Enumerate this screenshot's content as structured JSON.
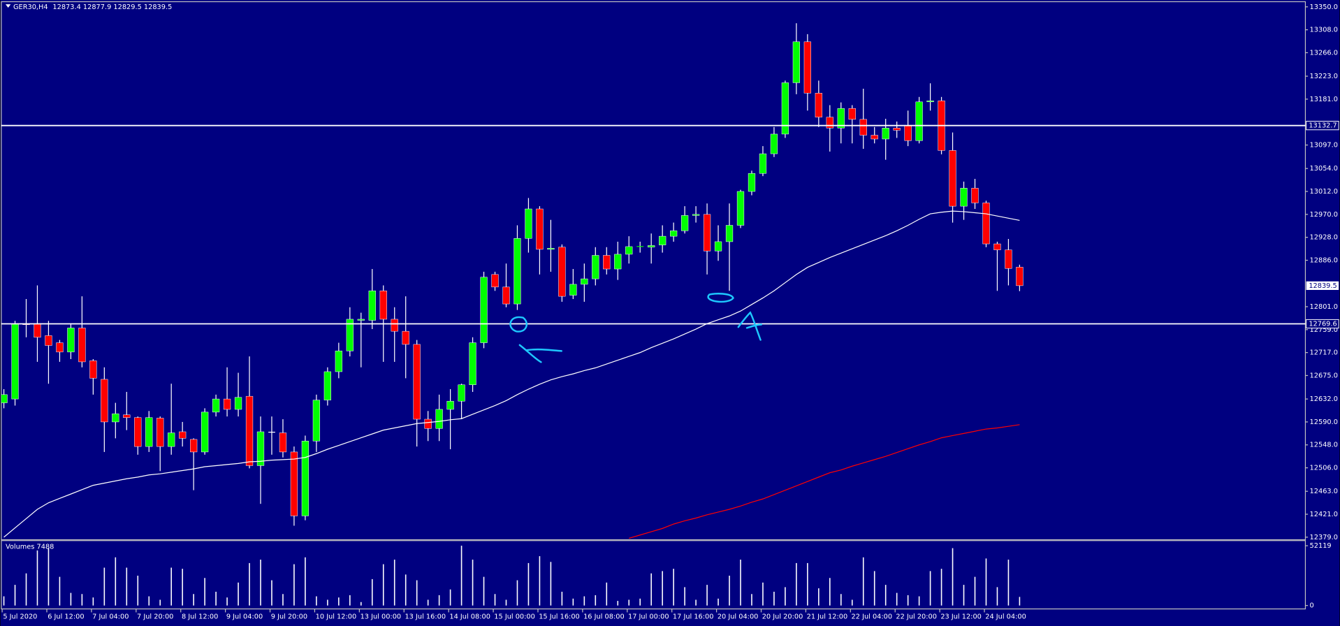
{
  "chart_data": {
    "type": "candlestick",
    "symbol": "GER30,H4",
    "categories": [
      "5 Jul 2020",
      null,
      null,
      null,
      "6 Jul 12:00",
      null,
      null,
      null,
      "7 Jul 04:00",
      null,
      null,
      null,
      "7 Jul 20:00",
      null,
      null,
      null,
      "8 Jul 12:00",
      null,
      null,
      null,
      "9 Jul 04:00",
      null,
      null,
      null,
      "9 Jul 20:00",
      null,
      null,
      null,
      "10 Jul 12:00",
      null,
      null,
      null,
      "13 Jul 00:00",
      null,
      null,
      null,
      "13 Jul 16:00",
      null,
      null,
      null,
      "14 Jul 08:00",
      null,
      null,
      null,
      "15 Jul 00:00",
      null,
      null,
      null,
      "15 Jul 16:00",
      null,
      null,
      null,
      "16 Jul 08:00",
      null,
      null,
      null,
      "17 Jul 00:00",
      null,
      null,
      null,
      "17 Jul 16:00",
      null,
      null,
      null,
      "20 Jul 04:00",
      null,
      null,
      null,
      "20 Jul 20:00",
      null,
      null,
      null,
      "21 Jul 12:00",
      null,
      null,
      null,
      "22 Jul 04:00",
      null,
      null,
      null,
      "22 Jul 20:00",
      null,
      null,
      null,
      "23 Jul 12:00",
      null,
      null,
      null,
      "24 Jul 04:00",
      null,
      null,
      null
    ],
    "open": [
      12625,
      12632,
      12770,
      12770,
      12748,
      12735,
      12718,
      12762,
      12702,
      12668,
      12590,
      12603,
      12598,
      12545,
      12597,
      12545,
      12572,
      12558,
      12535,
      12608,
      12632,
      12613,
      12637,
      12510,
      12572,
      12570,
      12535,
      12418,
      12555,
      12630,
      12682,
      12720,
      12776,
      12776,
      12830,
      12778,
      12756,
      12732,
      12595,
      12578,
      12613,
      12628,
      12658,
      12735,
      12860,
      12837,
      12806,
      12926,
      12980,
      12906,
      12910,
      12822,
      12842,
      12852,
      12895,
      12870,
      12897,
      12911,
      12910,
      12914,
      12930,
      12940,
      12968,
      12970,
      12903,
      12920,
      12950,
      13012,
      13045,
      13081,
      13117,
      13211,
      13286,
      13192,
      13148,
      13128,
      13164,
      13144,
      13115,
      13108,
      13128,
      13133,
      13105,
      13176,
      13178,
      13087,
      12985,
      13018,
      12991,
      12916,
      12905,
      12873.4
    ],
    "high": [
      12650,
      12775,
      12815,
      12840,
      12775,
      12740,
      12770,
      12820,
      12705,
      12690,
      12625,
      12645,
      12600,
      12610,
      12600,
      12660,
      12590,
      12560,
      12615,
      12640,
      12690,
      12680,
      12710,
      12600,
      12600,
      12595,
      12545,
      12565,
      12640,
      12690,
      12735,
      12800,
      12790,
      12870,
      12840,
      12800,
      12820,
      12740,
      12610,
      12640,
      12650,
      12660,
      12745,
      12865,
      12865,
      12880,
      12950,
      13000,
      12985,
      12960,
      12915,
      12870,
      12880,
      12910,
      12910,
      12920,
      12930,
      12920,
      12935,
      12950,
      12955,
      12985,
      12985,
      12990,
      12950,
      12990,
      13015,
      13050,
      13095,
      13130,
      13215,
      13320,
      13300,
      13215,
      13170,
      13175,
      13170,
      13200,
      13130,
      13145,
      13140,
      13160,
      13185,
      13210,
      13185,
      13120,
      13030,
      13035,
      12995,
      12920,
      12925,
      12877.9
    ],
    "low": [
      12615,
      12620,
      12745,
      12700,
      12660,
      12700,
      12705,
      12690,
      12640,
      12535,
      12560,
      12575,
      12530,
      12535,
      12500,
      12530,
      12545,
      12465,
      12530,
      12600,
      12600,
      12600,
      12505,
      12440,
      12530,
      12525,
      12400,
      12410,
      12535,
      12620,
      12670,
      12710,
      12690,
      12760,
      12700,
      12700,
      12670,
      12545,
      12555,
      12555,
      12540,
      12595,
      12645,
      12725,
      12830,
      12800,
      12795,
      12900,
      12860,
      12865,
      12810,
      12815,
      12810,
      12840,
      12860,
      12850,
      12880,
      12900,
      12880,
      12900,
      12920,
      12935,
      12955,
      12860,
      12885,
      12830,
      12945,
      13005,
      13040,
      13075,
      13110,
      13190,
      13160,
      13130,
      13085,
      13100,
      13100,
      13090,
      13100,
      13070,
      13110,
      13095,
      13100,
      13160,
      13080,
      12955,
      12960,
      12980,
      12910,
      12830,
      12840,
      12829.5
    ],
    "close": [
      12640,
      12770,
      12768,
      12745,
      12730,
      12718,
      12762,
      12700,
      12670,
      12590,
      12605,
      12598,
      12545,
      12598,
      12545,
      12570,
      12560,
      12535,
      12608,
      12632,
      12613,
      12635,
      12510,
      12572,
      12572,
      12535,
      12418,
      12555,
      12630,
      12682,
      12720,
      12778,
      12778,
      12830,
      12778,
      12756,
      12732,
      12595,
      12578,
      12613,
      12628,
      12658,
      12735,
      12855,
      12837,
      12806,
      12926,
      12980,
      12906,
      12908,
      12820,
      12842,
      12852,
      12895,
      12870,
      12897,
      12911,
      12912,
      12913,
      12930,
      12940,
      12968,
      12970,
      12903,
      12920,
      12950,
      13012,
      13045,
      13081,
      13117,
      13211,
      13286,
      13192,
      13148,
      13128,
      13164,
      13144,
      13115,
      13108,
      13128,
      13124,
      13105,
      13176,
      13178,
      13087,
      12985,
      13018,
      12991,
      12916,
      12905,
      12871,
      12839.5
    ],
    "up_color": "#00ff00",
    "down_color": "#ff0000",
    "overlays": [
      {
        "color": "#ffffff",
        "values": [
          12379,
          12396,
          12413,
          12430,
          12442,
          12450,
          12458,
          12466,
          12474,
          12478,
          12482,
          12486,
          12489,
          12493,
          12495,
          12498,
          12501,
          12504,
          12508,
          12510,
          12512,
          12514,
          12517,
          12518,
          12520,
          12521,
          12522,
          12525,
          12532,
          12540,
          12547,
          12554,
          12561,
          12568,
          12575,
          12579,
          12583,
          12587,
          12589,
          12591,
          12594,
          12596,
          12604,
          12612,
          12620,
          12629,
          12640,
          12650,
          12659,
          12667,
          12673,
          12678,
          12684,
          12689,
          12696,
          12703,
          12710,
          12717,
          12726,
          12734,
          12742,
          12751,
          12760,
          12770,
          12777,
          12784,
          12793,
          12805,
          12817,
          12830,
          12845,
          12860,
          12873,
          12882,
          12891,
          12899,
          12907,
          12915,
          12923,
          12931,
          12940,
          12950,
          12961,
          12971,
          12974,
          12976,
          12975,
          12973,
          12971,
          12967,
          12963,
          12959
        ]
      },
      {
        "color": "#ff0000",
        "values": [
          null,
          null,
          null,
          null,
          null,
          null,
          null,
          null,
          null,
          null,
          null,
          null,
          null,
          null,
          null,
          null,
          null,
          null,
          null,
          null,
          null,
          null,
          null,
          null,
          null,
          null,
          null,
          null,
          null,
          null,
          null,
          null,
          null,
          null,
          null,
          null,
          null,
          null,
          null,
          null,
          null,
          null,
          null,
          null,
          null,
          null,
          null,
          null,
          null,
          null,
          null,
          null,
          null,
          null,
          null,
          null,
          12377,
          12383,
          12389,
          12395,
          12403,
          12409,
          12414,
          12420,
          12425,
          12430,
          12436,
          12443,
          12449,
          12457,
          12465,
          12473,
          12481,
          12489,
          12497,
          12502,
          12509,
          12515,
          12521,
          12527,
          12534,
          12541,
          12548,
          12554,
          12561,
          12565,
          12569,
          12573,
          12577,
          12579,
          12582,
          12585
        ]
      }
    ],
    "hlines": [
      13132.7,
      12769.6
    ],
    "ylim": [
      12379,
      13350
    ],
    "yticks": [
      {
        "value": 13350,
        "label": "13350.0"
      },
      {
        "value": 13308,
        "label": "13308.0"
      },
      {
        "value": 13266,
        "label": "13266.0"
      },
      {
        "value": 13223,
        "label": "13223.0"
      },
      {
        "value": 13181,
        "label": "13181.0"
      },
      {
        "value": 13097,
        "label": "13097.0"
      },
      {
        "value": 13054,
        "label": "13054.0"
      },
      {
        "value": 13012,
        "label": "13012.0"
      },
      {
        "value": 12970,
        "label": "12970.0"
      },
      {
        "value": 12928,
        "label": "12928.0"
      },
      {
        "value": 12886,
        "label": "12886.0"
      },
      {
        "value": 12801,
        "label": "12801.0"
      },
      {
        "value": 12759,
        "label": "12759.0"
      },
      {
        "value": 12717,
        "label": "12717.0"
      },
      {
        "value": 12675,
        "label": "12675.0"
      },
      {
        "value": 12632,
        "label": "12632.0"
      },
      {
        "value": 12590,
        "label": "12590.0"
      },
      {
        "value": 12548,
        "label": "12548.0"
      },
      {
        "value": 12506,
        "label": "12506.0"
      },
      {
        "value": 12463,
        "label": "12463.0"
      },
      {
        "value": 12421,
        "label": "12421.0"
      },
      {
        "value": 12379,
        "label": "12379.0"
      }
    ],
    "volume": {
      "title": "Volumes",
      "color": "#ffffff",
      "values": [
        8000,
        18000,
        28000,
        48000,
        50000,
        25000,
        11000,
        10000,
        7000,
        33000,
        42000,
        33000,
        26000,
        8000,
        5000,
        33000,
        32000,
        10000,
        24000,
        12000,
        7000,
        20000,
        37000,
        40000,
        22000,
        10000,
        36000,
        42000,
        8000,
        5000,
        7000,
        9000,
        3000,
        23000,
        36000,
        40000,
        27000,
        22000,
        5000,
        9000,
        14000,
        52119,
        40000,
        25000,
        10000,
        5000,
        22000,
        37000,
        43000,
        38000,
        12000,
        6000,
        8000,
        9000,
        20000,
        4000,
        5000,
        6000,
        28000,
        30000,
        32000,
        16000,
        5000,
        18000,
        6000,
        26000,
        40000,
        10000,
        20000,
        12000,
        16000,
        37000,
        37000,
        15000,
        24000,
        10000,
        5000,
        42000,
        30000,
        18000,
        11000,
        9000,
        8000,
        30000,
        32000,
        50000,
        18000,
        25000,
        41000,
        16000,
        40000,
        7488
      ],
      "ylim": [
        0,
        52119
      ],
      "yticks": [
        52119,
        0
      ]
    }
  }
}
